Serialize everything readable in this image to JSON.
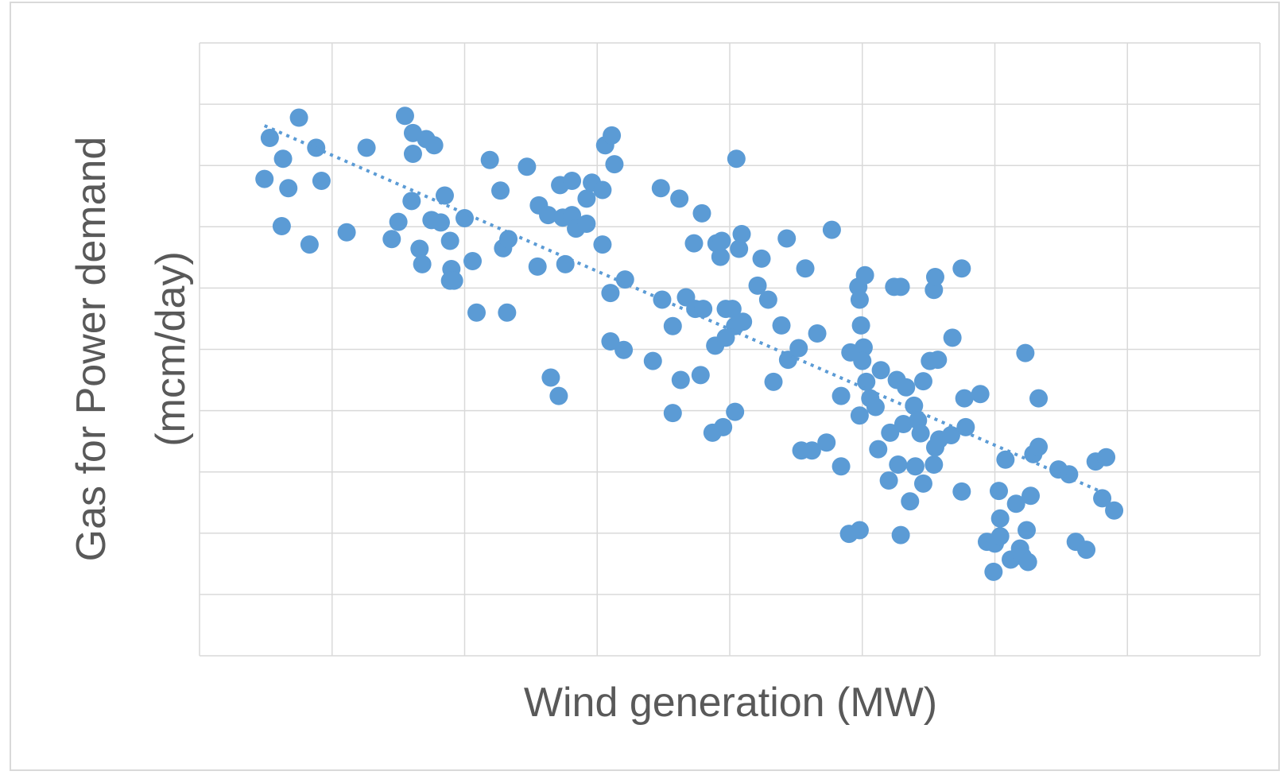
{
  "chart_data": {
    "type": "scatter",
    "xlabel": "Wind generation (MW)",
    "ylabel": [
      "Gas for Power demand",
      "(mcm/day)"
    ],
    "color": "#5b9bd5",
    "grid": true,
    "xlim": [
      0,
      8
    ],
    "xticks": [
      0,
      1,
      2,
      3,
      4,
      5,
      6,
      7,
      8
    ],
    "ylim": [
      0,
      10
    ],
    "yticks": [
      0,
      1,
      2,
      3,
      4,
      5,
      6,
      7,
      8,
      9,
      10
    ],
    "x": [
      0.49,
      0.53,
      0.63,
      0.67,
      0.62,
      0.75,
      0.83,
      0.88,
      0.92,
      1.11,
      1.26,
      1.45,
      1.5,
      1.55,
      1.6,
      1.61,
      1.61,
      1.66,
      1.68,
      1.71,
      1.75,
      1.77,
      1.82,
      1.85,
      1.89,
      1.9,
      1.89,
      1.92,
      2.0,
      2.06,
      2.09,
      2.19,
      2.27,
      2.29,
      2.33,
      2.32,
      2.47,
      2.55,
      2.56,
      2.63,
      2.65,
      2.71,
      2.72,
      2.74,
      2.76,
      2.81,
      2.81,
      2.84,
      2.92,
      2.92,
      2.96,
      3.04,
      3.04,
      3.06,
      3.11,
      3.13,
      3.1,
      3.1,
      3.2,
      3.21,
      3.42,
      3.48,
      3.49,
      3.57,
      3.57,
      3.62,
      3.63,
      3.67,
      3.73,
      3.74,
      3.78,
      3.79,
      3.8,
      3.87,
      3.89,
      3.9,
      3.93,
      3.95,
      3.94,
      3.97,
      3.97,
      4.02,
      4.04,
      4.05,
      4.07,
      4.04,
      4.09,
      4.1,
      4.21,
      4.24,
      4.29,
      4.33,
      4.39,
      4.43,
      4.44,
      4.52,
      4.54,
      4.57,
      4.62,
      4.66,
      4.73,
      4.77,
      4.84,
      4.84,
      4.9,
      4.91,
      4.98,
      4.97,
      4.98,
      4.99,
      5.01,
      5.0,
      4.98,
      5.02,
      5.03,
      5.06,
      5.1,
      5.12,
      5.14,
      5.2,
      5.21,
      5.24,
      5.26,
      5.29,
      5.29,
      5.27,
      5.31,
      5.33,
      5.36,
      5.39,
      5.4,
      5.42,
      5.44,
      5.46,
      5.46,
      5.51,
      5.54,
      5.54,
      5.55,
      5.57,
      5.55,
      5.58,
      5.67,
      5.68,
      5.75,
      5.75,
      5.77,
      5.78,
      5.89,
      5.94,
      5.99,
      6.0,
      6.03,
      6.04,
      6.04,
      6.08,
      6.12,
      6.16,
      6.19,
      6.21,
      6.24,
      6.23,
      6.25,
      6.27,
      6.29,
      6.33,
      6.33,
      6.48,
      6.56,
      6.61,
      6.69,
      6.76,
      6.84,
      6.81,
      6.9
    ],
    "values": [
      7.78,
      8.45,
      8.11,
      7.63,
      7.01,
      8.78,
      6.71,
      8.29,
      7.75,
      6.91,
      8.29,
      6.8,
      7.08,
      8.81,
      7.42,
      8.53,
      8.19,
      6.64,
      6.39,
      8.43,
      7.11,
      8.33,
      7.07,
      7.51,
      6.77,
      6.31,
      6.12,
      6.12,
      7.14,
      6.44,
      5.6,
      8.09,
      7.59,
      6.65,
      6.8,
      5.6,
      7.98,
      6.35,
      7.35,
      7.19,
      4.54,
      4.24,
      7.68,
      7.15,
      6.39,
      7.75,
      7.19,
      6.97,
      7.05,
      7.46,
      7.72,
      7.6,
      6.71,
      8.33,
      8.49,
      8.02,
      5.92,
      5.13,
      4.99,
      6.14,
      4.81,
      7.63,
      5.81,
      5.38,
      3.96,
      7.46,
      4.5,
      5.85,
      6.73,
      5.66,
      4.58,
      7.22,
      5.66,
      3.64,
      5.06,
      6.73,
      6.51,
      3.73,
      6.77,
      5.19,
      5.66,
      5.66,
      3.98,
      8.11,
      6.64,
      5.38,
      6.88,
      5.45,
      6.04,
      6.48,
      5.81,
      4.47,
      5.39,
      6.81,
      4.83,
      5.02,
      3.35,
      6.32,
      3.35,
      5.26,
      3.48,
      6.95,
      3.09,
      4.24,
      1.99,
      4.95,
      2.05,
      6.02,
      5.81,
      5.39,
      5.03,
      4.81,
      3.92,
      6.21,
      4.47,
      4.2,
      4.06,
      3.37,
      4.66,
      2.86,
      3.64,
      6.02,
      4.5,
      6.02,
      1.97,
      3.12,
      3.78,
      4.38,
      2.52,
      4.08,
      3.09,
      3.84,
      3.63,
      4.48,
      2.81,
      4.81,
      3.12,
      5.97,
      6.18,
      4.83,
      3.4,
      3.53,
      3.6,
      5.19,
      6.32,
      2.68,
      4.2,
      3.73,
      4.27,
      1.86,
      1.37,
      1.83,
      2.69,
      1.95,
      2.24,
      3.2,
      1.57,
      2.48,
      1.75,
      1.62,
      2.05,
      4.94,
      1.53,
      2.61,
      3.29,
      3.41,
      4.2,
      3.04,
      2.96,
      1.86,
      1.73,
      3.17,
      3.24,
      2.57,
      2.37
    ],
    "trendline": {
      "x": [
        0.49,
        6.82
      ],
      "values": [
        8.65,
        2.66
      ],
      "style": "dotted"
    }
  }
}
